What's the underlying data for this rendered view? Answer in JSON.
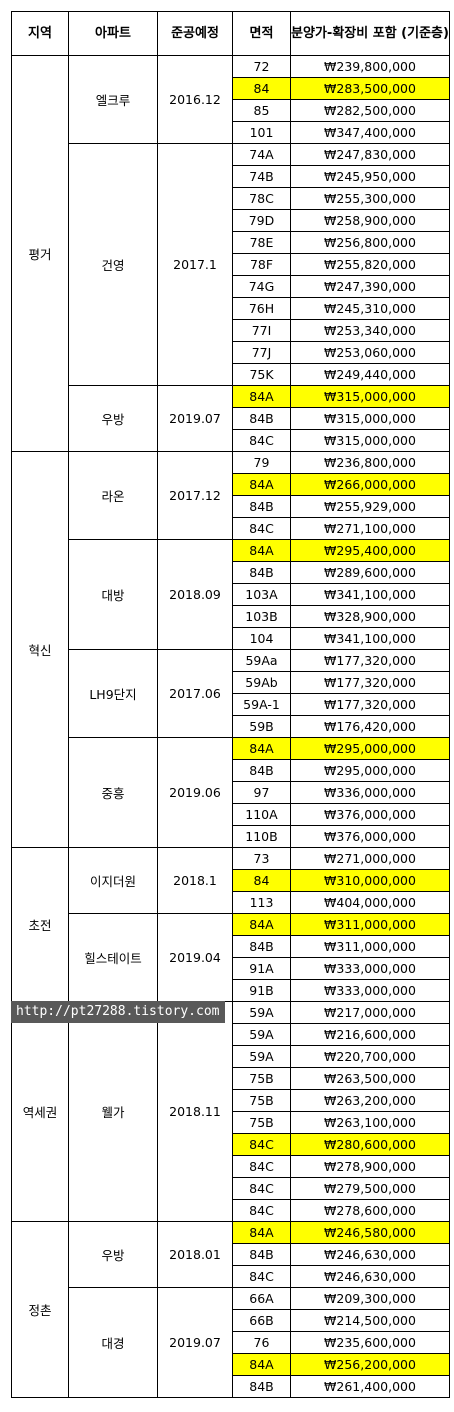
{
  "headers": {
    "region": "지역",
    "apartment": "아파트",
    "completion": "준공예정",
    "area": "면적",
    "price": "분양가-확장비 포함 (기준층)"
  },
  "watermark": "http://pt27288.tistory.com",
  "colors": {
    "highlight": "#ffff00",
    "watermark_bg": "#595959"
  },
  "rows": [
    {
      "region": "평거",
      "apartment": "엘크루",
      "completion": "2016.12",
      "area": "72",
      "price": "₩239,800,000",
      "highlight": false
    },
    {
      "area": "84",
      "price": "₩283,500,000",
      "highlight": true
    },
    {
      "area": "85",
      "price": "₩282,500,000",
      "highlight": false
    },
    {
      "area": "101",
      "price": "₩347,400,000",
      "highlight": false
    },
    {
      "apartment": "건영",
      "completion": "2017.1",
      "area": "74A",
      "price": "₩247,830,000",
      "highlight": false
    },
    {
      "area": "74B",
      "price": "₩245,950,000",
      "highlight": false
    },
    {
      "area": "78C",
      "price": "₩255,300,000",
      "highlight": false
    },
    {
      "area": "79D",
      "price": "₩258,900,000",
      "highlight": false
    },
    {
      "area": "78E",
      "price": "₩256,800,000",
      "highlight": false
    },
    {
      "area": "78F",
      "price": "₩255,820,000",
      "highlight": false
    },
    {
      "area": "74G",
      "price": "₩247,390,000",
      "highlight": false
    },
    {
      "area": "76H",
      "price": "₩245,310,000",
      "highlight": false
    },
    {
      "area": "77I",
      "price": "₩253,340,000",
      "highlight": false
    },
    {
      "area": "77J",
      "price": "₩253,060,000",
      "highlight": false
    },
    {
      "area": "75K",
      "price": "₩249,440,000",
      "highlight": false
    },
    {
      "apartment": "우방",
      "completion": "2019.07",
      "area": "84A",
      "price": "₩315,000,000",
      "highlight": true
    },
    {
      "area": "84B",
      "price": "₩315,000,000",
      "highlight": false
    },
    {
      "area": "84C",
      "price": "₩315,000,000",
      "highlight": false
    },
    {
      "region": "혁신",
      "apartment": "라온",
      "completion": "2017.12",
      "area": "79",
      "price": "₩236,800,000",
      "highlight": false
    },
    {
      "area": "84A",
      "price": "₩266,000,000",
      "highlight": true
    },
    {
      "area": "84B",
      "price": "₩255,929,000",
      "highlight": false
    },
    {
      "area": "84C",
      "price": "₩271,100,000",
      "highlight": false
    },
    {
      "apartment": "대방",
      "completion": "2018.09",
      "area": "84A",
      "price": "₩295,400,000",
      "highlight": true
    },
    {
      "area": "84B",
      "price": "₩289,600,000",
      "highlight": false
    },
    {
      "area": "103A",
      "price": "₩341,100,000",
      "highlight": false
    },
    {
      "area": "103B",
      "price": "₩328,900,000",
      "highlight": false
    },
    {
      "area": "104",
      "price": "₩341,100,000",
      "highlight": false
    },
    {
      "apartment": "LH9단지",
      "completion": "2017.06",
      "area": "59Aa",
      "price": "₩177,320,000",
      "highlight": false
    },
    {
      "area": "59Ab",
      "price": "₩177,320,000",
      "highlight": false
    },
    {
      "area": "59A-1",
      "price": "₩177,320,000",
      "highlight": false
    },
    {
      "area": "59B",
      "price": "₩176,420,000",
      "highlight": false
    },
    {
      "apartment": "중흥",
      "completion": "2019.06",
      "area": "84A",
      "price": "₩295,000,000",
      "highlight": true
    },
    {
      "area": "84B",
      "price": "₩295,000,000",
      "highlight": false
    },
    {
      "area": "97",
      "price": "₩336,000,000",
      "highlight": false
    },
    {
      "area": "110A",
      "price": "₩376,000,000",
      "highlight": false
    },
    {
      "area": "110B",
      "price": "₩376,000,000",
      "highlight": false
    },
    {
      "region": "초전",
      "apartment": "이지더원",
      "completion": "2018.1",
      "area": "73",
      "price": "₩271,000,000",
      "highlight": false
    },
    {
      "area": "84",
      "price": "₩310,000,000",
      "highlight": true
    },
    {
      "area": "113",
      "price": "₩404,000,000",
      "highlight": false
    },
    {
      "apartment": "힐스테이트",
      "completion": "2019.04",
      "area": "84A",
      "price": "₩311,000,000",
      "highlight": true
    },
    {
      "area": "84B",
      "price": "₩311,000,000",
      "highlight": false
    },
    {
      "area": "91A",
      "price": "₩333,000,000",
      "highlight": false
    },
    {
      "area": "91B",
      "price": "₩333,000,000",
      "highlight": false
    },
    {
      "region": "역세권",
      "apartment": "웰가",
      "completion": "2018.11",
      "area": "59A",
      "price": "₩217,000,000",
      "highlight": false
    },
    {
      "area": "59A",
      "price": "₩216,600,000",
      "highlight": false
    },
    {
      "area": "59A",
      "price": "₩220,700,000",
      "highlight": false
    },
    {
      "area": "75B",
      "price": "₩263,500,000",
      "highlight": false
    },
    {
      "area": "75B",
      "price": "₩263,200,000",
      "highlight": false
    },
    {
      "area": "75B",
      "price": "₩263,100,000",
      "highlight": false
    },
    {
      "area": "84C",
      "price": "₩280,600,000",
      "highlight": true
    },
    {
      "area": "84C",
      "price": "₩278,900,000",
      "highlight": false
    },
    {
      "area": "84C",
      "price": "₩279,500,000",
      "highlight": false
    },
    {
      "area": "84C",
      "price": "₩278,600,000",
      "highlight": false
    },
    {
      "region": "정촌",
      "apartment": "우방",
      "completion": "2018.01",
      "area": "84A",
      "price": "₩246,580,000",
      "highlight": true
    },
    {
      "area": "84B",
      "price": "₩246,630,000",
      "highlight": false
    },
    {
      "area": "84C",
      "price": "₩246,630,000",
      "highlight": false
    },
    {
      "apartment": "대경",
      "completion": "2019.07",
      "area": "66A",
      "price": "₩209,300,000",
      "highlight": false
    },
    {
      "area": "66B",
      "price": "₩214,500,000",
      "highlight": false
    },
    {
      "area": "76",
      "price": "₩235,600,000",
      "highlight": false
    },
    {
      "area": "84A",
      "price": "₩256,200,000",
      "highlight": true
    },
    {
      "area": "84B",
      "price": "₩261,400,000",
      "highlight": false
    }
  ]
}
